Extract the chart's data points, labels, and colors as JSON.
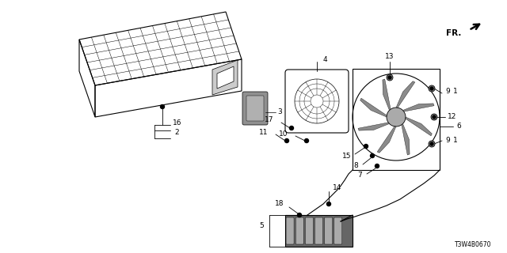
{
  "bg_color": "#ffffff",
  "part_number": "T3W4B0670",
  "fr_label": "FR.",
  "figsize": [
    6.4,
    3.2
  ],
  "dpi": 100
}
